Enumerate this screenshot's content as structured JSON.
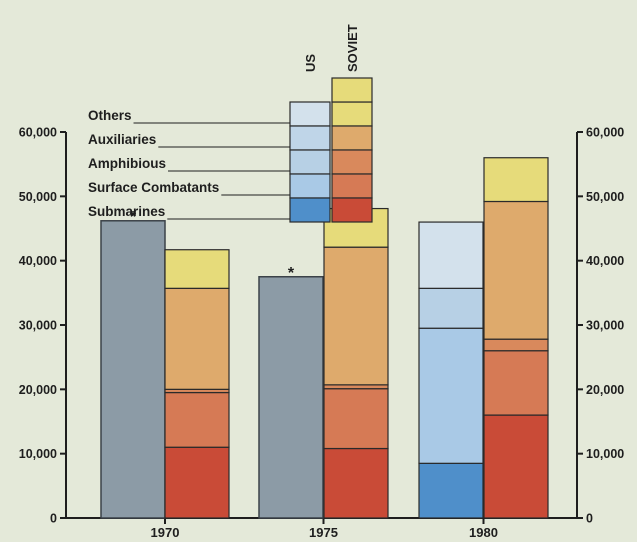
{
  "chart_data": {
    "type": "bar",
    "subtype": "grouped-stacked",
    "categories": [
      "1970",
      "1975",
      "1980"
    ],
    "ylim": [
      0,
      60000
    ],
    "yticks": [
      "0",
      "10,000",
      "20,000",
      "30,000",
      "40,000",
      "50,000",
      "60,000"
    ],
    "grid": false,
    "legend_position": "top-center",
    "legend_columns": [
      "US",
      "SOVIET"
    ],
    "legend_labels": [
      "Others",
      "Auxiliaries",
      "Amphibious",
      "Surface Combatants",
      "Submarines"
    ],
    "groups": [
      {
        "name": "US",
        "stacks": [
          {
            "category": "1970",
            "total": 46200,
            "note": "*"
          },
          {
            "category": "1975",
            "total": 37500,
            "note": "*"
          },
          {
            "category": "1980",
            "segments": {
              "Submarines": 8500,
              "Surface Combatants": 21000,
              "Amphibious": 6200,
              "Auxiliaries": 0,
              "Others": 10300
            },
            "total": 46000
          }
        ]
      },
      {
        "name": "SOVIET",
        "stacks": [
          {
            "category": "1970",
            "segments": {
              "Submarines": 11000,
              "Surface Combatants": 8500,
              "Amphibious": 500,
              "Auxiliaries": 15700,
              "Others": 6000
            },
            "total": 41700
          },
          {
            "category": "1975",
            "segments": {
              "Submarines": 10800,
              "Surface Combatants": 9300,
              "Amphibious": 600,
              "Auxiliaries": 21400,
              "Others": 6000
            },
            "total": 48100
          },
          {
            "category": "1980",
            "segments": {
              "Submarines": 16000,
              "Surface Combatants": 10000,
              "Amphibious": 1800,
              "Auxiliaries": 21400,
              "Others": 6800
            },
            "total": 56000
          }
        ]
      }
    ],
    "colors": {
      "US": {
        "Submarines": "#4f8fca",
        "Surface Combatants": "#a9c9e6",
        "Amphibious": "#b7d0e5",
        "Auxiliaries": "#bfd5e8",
        "Others": "#d3e1ec",
        "total": "#8c9ba6"
      },
      "SOVIET": {
        "Submarines": "#c94b37",
        "Surface Combatants": "#d67a55",
        "Amphibious": "#d9895c",
        "Auxiliaries": "#deaa6c",
        "Others": "#e6db7a"
      }
    }
  }
}
